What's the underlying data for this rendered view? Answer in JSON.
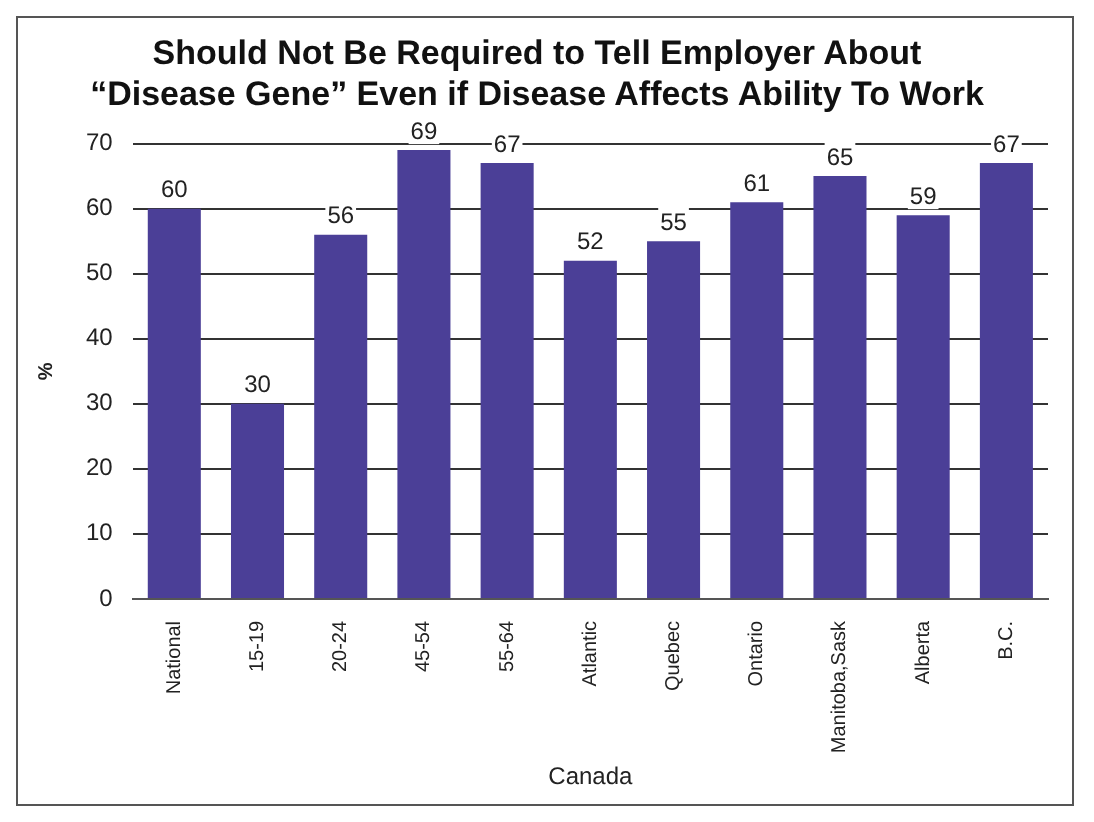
{
  "chart_data": {
    "type": "bar",
    "title": "Should Not Be Required to Tell Employer About\n“Disease Gene” Even if Disease Affects Ability To Work",
    "xlabel": "Canada",
    "ylabel": "%",
    "categories": [
      "National",
      "15-19",
      "20-24",
      "45-54",
      "55-64",
      "Atlantic",
      "Quebec",
      "Ontario",
      "Manitoba,Sask",
      "Alberta",
      "B.C."
    ],
    "values": [
      60,
      30,
      56,
      69,
      67,
      52,
      55,
      61,
      65,
      59,
      67
    ],
    "color": "#4b3f97",
    "ylim": [
      0,
      70
    ],
    "yticks": [
      0,
      10,
      20,
      30,
      40,
      50,
      60,
      70
    ],
    "grid": "y",
    "data_labels": true,
    "legend": false
  }
}
